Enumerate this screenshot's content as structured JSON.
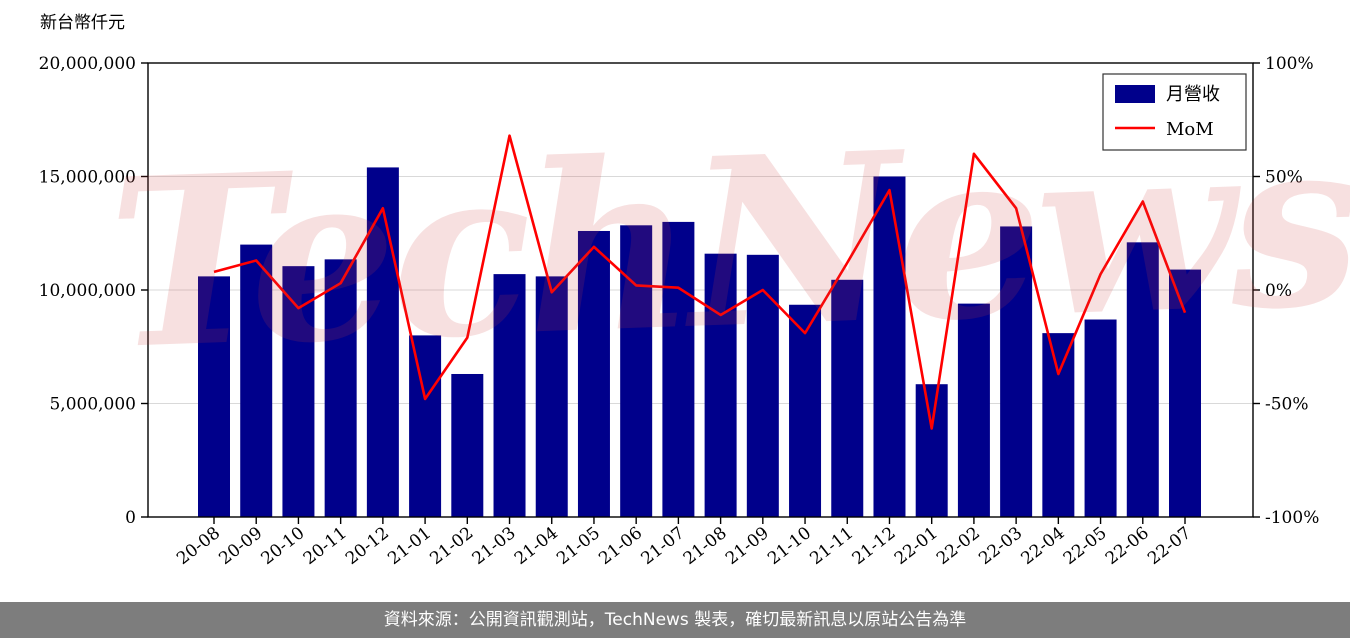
{
  "header": {
    "y_axis_title": "新台幣仟元"
  },
  "legend": {
    "revenue_label": "月營收",
    "mom_label": "MoM"
  },
  "watermark": "TechNews",
  "footer": {
    "text": "資料來源：公開資訊觀測站，TechNews 製表，確切最新訊息以原站公告為準"
  },
  "chart_data": {
    "type": "bar",
    "subtype": "bar+line-dual-axis",
    "categories": [
      "20-08",
      "20-09",
      "20-10",
      "20-11",
      "20-12",
      "21-01",
      "21-02",
      "21-03",
      "21-04",
      "21-05",
      "21-06",
      "21-07",
      "21-08",
      "21-09",
      "21-10",
      "21-11",
      "21-12",
      "22-01",
      "22-02",
      "22-03",
      "22-04",
      "22-05",
      "22-06",
      "22-07"
    ],
    "series": [
      {
        "name": "月營收",
        "type": "bar",
        "axis": "left",
        "color": "#00008B",
        "values": [
          10600000,
          12000000,
          11050000,
          11350000,
          15400000,
          8000000,
          6300000,
          10700000,
          10600000,
          12600000,
          12850000,
          13000000,
          11600000,
          11550000,
          9350000,
          10450000,
          15000000,
          5850000,
          9400000,
          12800000,
          8100000,
          8700000,
          12100000,
          10900000
        ]
      },
      {
        "name": "MoM",
        "type": "line",
        "axis": "right",
        "color": "#FF0000",
        "values": [
          8,
          13,
          -8,
          3,
          36,
          -48,
          -21,
          68,
          -1,
          19,
          2,
          1,
          -11,
          0,
          -19,
          12,
          44,
          -61,
          60,
          36,
          -37,
          7,
          39,
          -10
        ]
      }
    ],
    "y_left": {
      "title": "新台幣仟元",
      "min": 0,
      "max": 20000000,
      "ticks": [
        0,
        5000000,
        10000000,
        15000000,
        20000000
      ],
      "tick_labels": [
        "0",
        "5,000,000",
        "10,000,000",
        "15,000,000",
        "20,000,000"
      ]
    },
    "y_right": {
      "min": -100,
      "max": 100,
      "ticks": [
        -100,
        -50,
        0,
        50,
        100
      ],
      "tick_labels": [
        "-100%",
        "-50%",
        "0%",
        "50%",
        "100%"
      ]
    },
    "grid": true,
    "legend_position": "top-right"
  }
}
